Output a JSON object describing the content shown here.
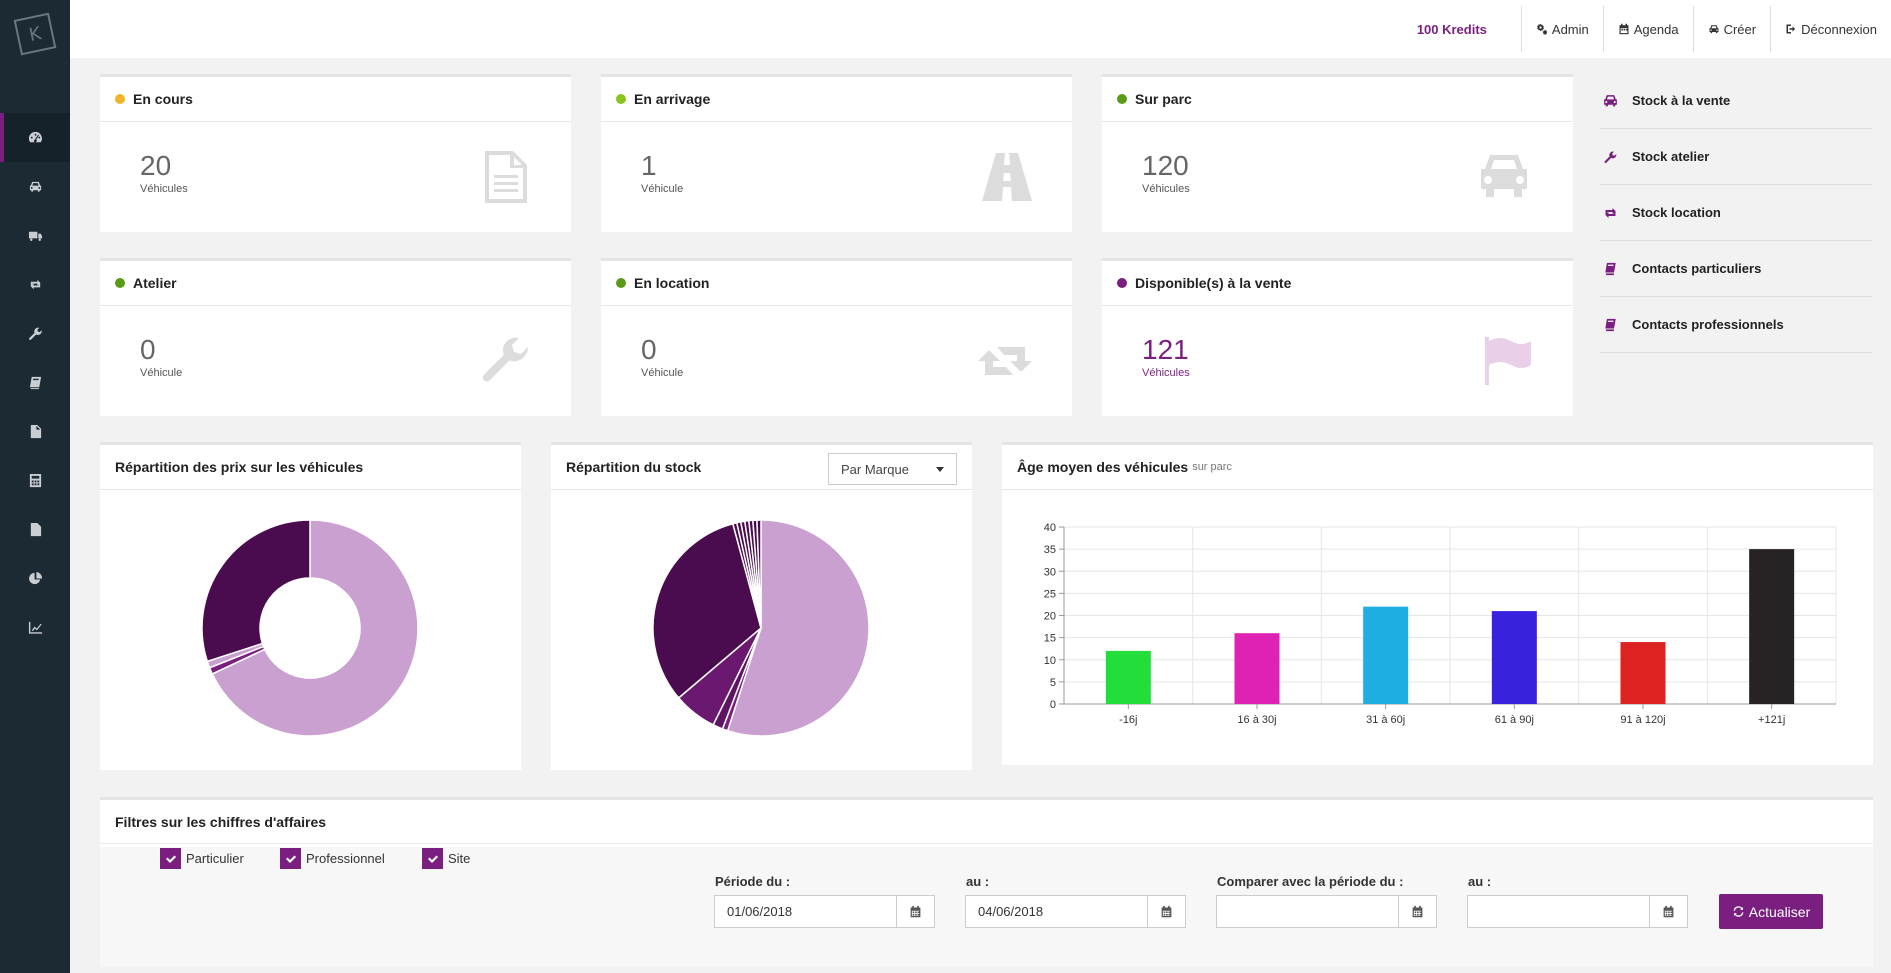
{
  "app": {
    "logo_letter": "K"
  },
  "sidebar": {
    "items": [
      {
        "icon": "dashboard-icon",
        "active": true
      },
      {
        "icon": "car-icon"
      },
      {
        "icon": "truck-icon"
      },
      {
        "icon": "retweet-icon"
      },
      {
        "icon": "wrench-icon"
      },
      {
        "icon": "book-icon"
      },
      {
        "icon": "document-icon"
      },
      {
        "icon": "calculator-icon"
      },
      {
        "icon": "file-text-icon"
      },
      {
        "icon": "pie-chart-icon"
      },
      {
        "icon": "line-chart-icon"
      }
    ]
  },
  "topbar": {
    "kredits": "100 Kredits",
    "admin": "Admin",
    "agenda": "Agenda",
    "create": "Créer",
    "logout": "Déconnexion"
  },
  "stats": {
    "en_cours": {
      "title": "En cours",
      "value": "20",
      "unit": "Véhicules",
      "color": "#f0b429"
    },
    "en_arrivage": {
      "title": "En arrivage",
      "value": "1",
      "unit": "Véhicule",
      "color": "#8ac31c"
    },
    "sur_parc": {
      "title": "Sur parc",
      "value": "120",
      "unit": "Véhicules",
      "color": "#5a9a16"
    },
    "atelier": {
      "title": "Atelier",
      "value": "0",
      "unit": "Véhicule",
      "color": "#5a9a16"
    },
    "en_location": {
      "title": "En location",
      "value": "0",
      "unit": "Véhicule",
      "color": "#5a9a16"
    },
    "disponibles": {
      "title": "Disponible(s) à la vente",
      "value": "121",
      "unit": "Véhicules",
      "color": "#7a1f7f"
    }
  },
  "quick_links": [
    {
      "label": "Stock à la vente",
      "icon": "car-icon"
    },
    {
      "label": "Stock atelier",
      "icon": "wrench-icon"
    },
    {
      "label": "Stock location",
      "icon": "retweet-icon"
    },
    {
      "label": "Contacts particuliers",
      "icon": "book-icon"
    },
    {
      "label": "Contacts professionnels",
      "icon": "book-icon"
    }
  ],
  "charts": {
    "prix_title": "Répartition des prix sur les véhicules",
    "stock_title": "Répartition du stock",
    "stock_select": "Par Marque",
    "age_title": "Âge moyen des véhicules",
    "age_subtitle": "sur parc"
  },
  "chart_data": [
    {
      "type": "pie",
      "title": "Répartition des prix sur les véhicules",
      "donut": true,
      "values": [
        68,
        1,
        1,
        30
      ],
      "colors": [
        "#c9a0cf",
        "#7a1f7f",
        "#c9a0cf",
        "#4a0c4e"
      ]
    },
    {
      "type": "pie",
      "title": "Répartition du stock",
      "values": [
        55,
        0.8,
        1.5,
        6.5,
        32,
        0.6,
        0.6,
        0.6,
        0.6,
        0.6,
        0.6,
        0.6
      ],
      "colors": [
        "#c9a0cf",
        "#7a1f7f",
        "#5e1463",
        "#6a1870",
        "#4a0c4e",
        "#4a0c4e",
        "#4a0c4e",
        "#4a0c4e",
        "#4a0c4e",
        "#4a0c4e",
        "#4a0c4e",
        "#4a0c4e"
      ]
    },
    {
      "type": "bar",
      "title": "Âge moyen des véhicules",
      "subtitle": "sur parc",
      "categories": [
        "-16j",
        "16 à 30j",
        "31 à 60j",
        "61 à 90j",
        "91 à 120j",
        "+121j"
      ],
      "values": [
        12,
        16,
        22,
        21,
        14,
        35
      ],
      "colors": [
        "#22dd3a",
        "#dd22b4",
        "#1eaee0",
        "#3822dd",
        "#dd2222",
        "#272223"
      ],
      "ylim": [
        0,
        40
      ],
      "yticks": [
        0,
        5,
        10,
        15,
        20,
        25,
        30,
        35,
        40
      ],
      "grid": true
    }
  ],
  "filters": {
    "title": "Filtres sur les chiffres d'affaires",
    "particulier": "Particulier",
    "professionnel": "Professionnel",
    "site": "Site",
    "periode_du": "Période du :",
    "au": "au :",
    "comparer": "Comparer avec la période du :",
    "au2": "au :",
    "date_from": "01/06/2018",
    "date_to": "04/06/2018",
    "cmp_from": "",
    "cmp_to": "",
    "refresh": "Actualiser"
  }
}
